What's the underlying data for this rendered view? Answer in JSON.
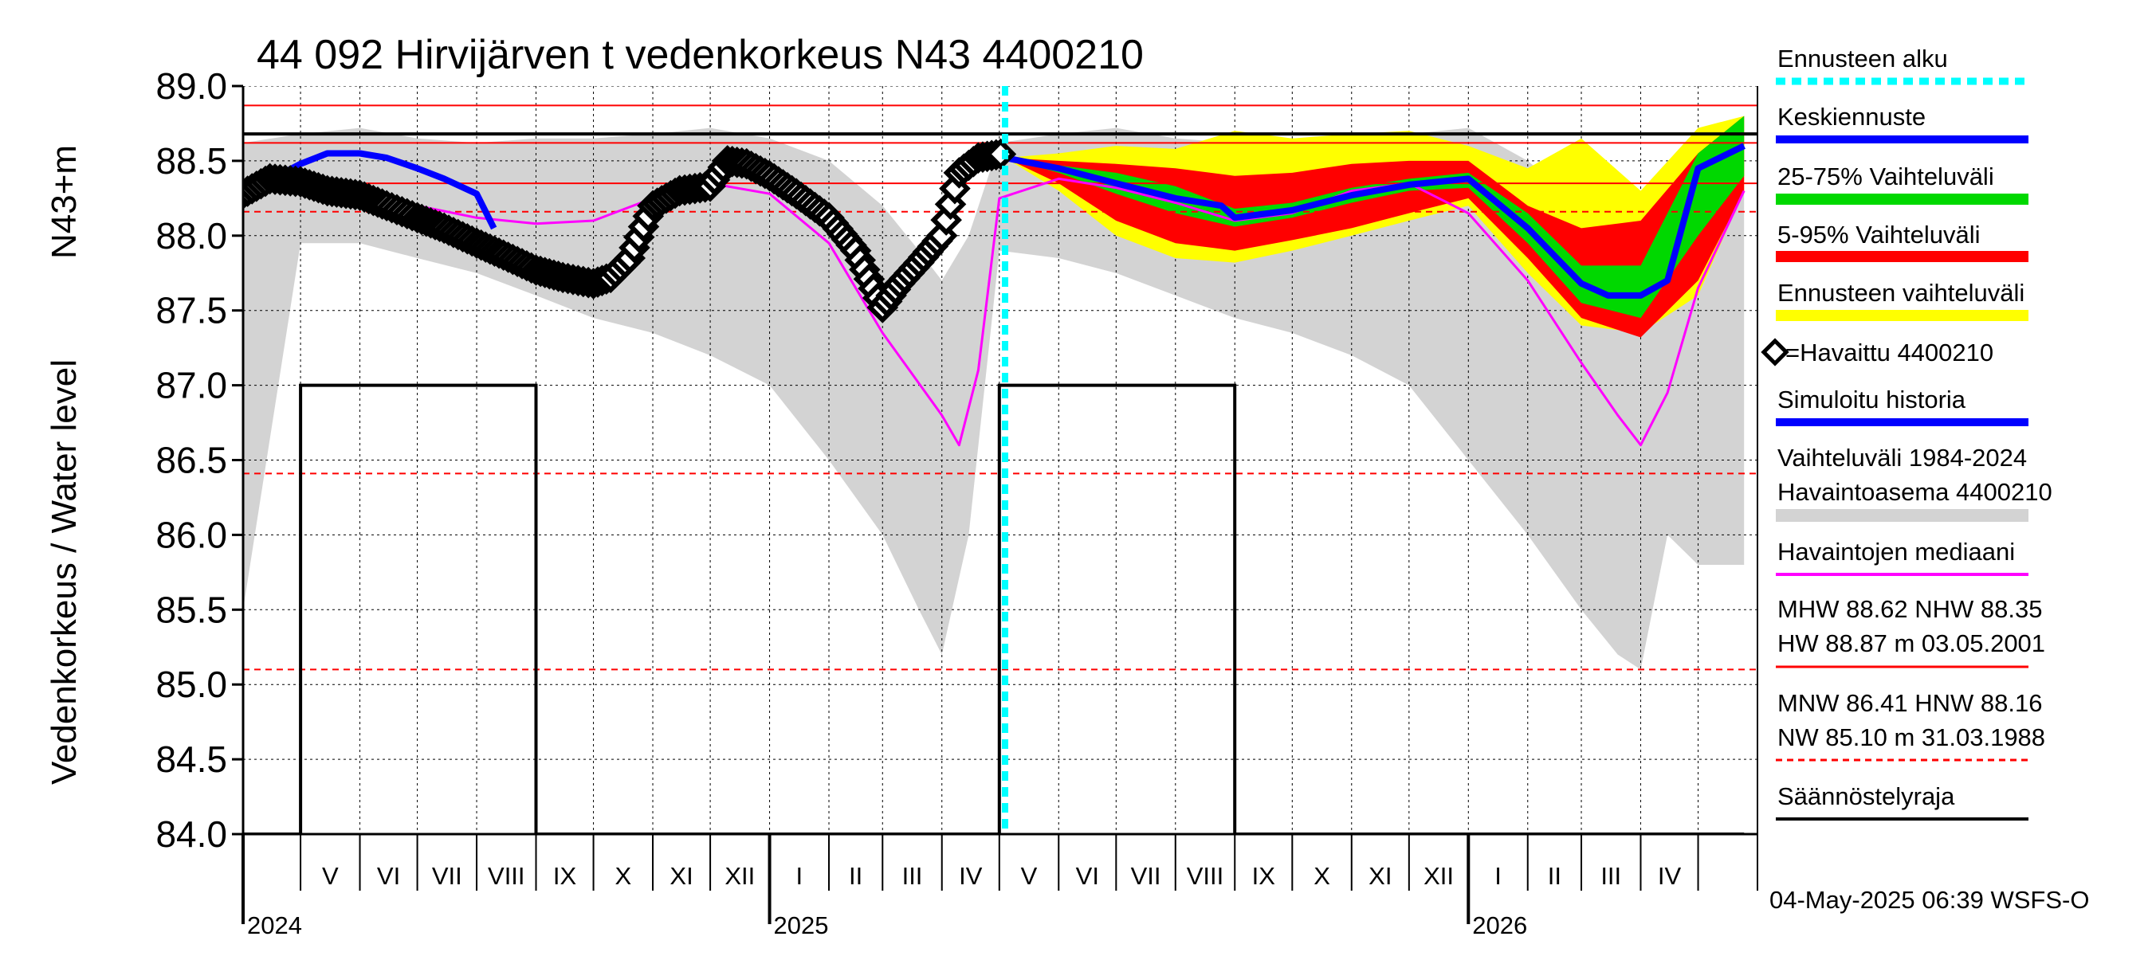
{
  "chart_data": {
    "type": "line",
    "title": "44 092 Hirvijärven t vedenkorkeus N43 4400210",
    "ylabel": "Vedenkorkeus / Water level",
    "ylabel2": "N43+m",
    "ylim": [
      84.0,
      89.0
    ],
    "yticks": [
      "89.0",
      "88.5",
      "88.0",
      "87.5",
      "87.0",
      "86.5",
      "86.0",
      "85.5",
      "85.0",
      "84.5",
      "84.0"
    ],
    "grid": true,
    "x_range": [
      "2024-04-01",
      "2026-06-01"
    ],
    "months": [
      "V",
      "VI",
      "VII",
      "VIII",
      "IX",
      "X",
      "XI",
      "XII",
      "I",
      "II",
      "III",
      "IV",
      "V",
      "VI",
      "VII",
      "VIII",
      "IX",
      "X",
      "XI",
      "XII",
      "I",
      "II",
      "III",
      "IV"
    ],
    "years": [
      "2024",
      "2025",
      "2026"
    ],
    "forecast_start": "2025-05-04",
    "reference_levels": {
      "HW": 88.87,
      "MHW": 88.62,
      "NHW": 88.35,
      "HNW": 88.16,
      "MNW": 86.41,
      "NW": 85.1,
      "regulation_upper": 88.68,
      "regulation_lower": 84.0
    },
    "series": [
      {
        "name": "=Havaittu 4400210",
        "color": "#000000",
        "x": [
          "2024-04-01",
          "2024-04-15",
          "2024-05-01",
          "2024-05-15",
          "2024-06-01",
          "2024-06-15",
          "2024-07-01",
          "2024-07-15",
          "2024-08-01",
          "2024-08-15",
          "2024-09-01",
          "2024-09-15",
          "2024-10-01",
          "2024-10-10",
          "2024-10-20",
          "2024-11-01",
          "2024-11-15",
          "2024-12-01",
          "2024-12-10",
          "2024-12-20",
          "2025-01-01",
          "2025-01-15",
          "2025-02-01",
          "2025-02-15",
          "2025-03-01",
          "2025-03-10",
          "2025-03-20",
          "2025-04-01",
          "2025-04-10",
          "2025-04-20",
          "2025-05-04"
        ],
        "y": [
          88.28,
          88.38,
          88.36,
          88.3,
          88.27,
          88.2,
          88.12,
          88.05,
          87.95,
          87.87,
          87.77,
          87.72,
          87.68,
          87.72,
          87.85,
          88.2,
          88.3,
          88.33,
          88.5,
          88.48,
          88.4,
          88.28,
          88.12,
          87.9,
          87.52,
          87.68,
          87.82,
          88.0,
          88.42,
          88.52,
          88.55
        ]
      },
      {
        "name": "Simuloitu historia",
        "color": "#0000ff",
        "x": [
          "2024-04-01",
          "2024-05-01",
          "2024-05-15",
          "2024-06-01",
          "2024-06-15",
          "2024-07-01",
          "2024-07-15",
          "2024-08-01",
          "2024-08-10"
        ],
        "y": [
          88.28,
          88.48,
          88.55,
          88.55,
          88.52,
          88.45,
          88.38,
          88.28,
          88.05
        ]
      },
      {
        "name": "Havaintojen mediaani",
        "color": "#ff00ff",
        "x": [
          "2024-04-01",
          "2024-05-01",
          "2024-06-01",
          "2024-07-01",
          "2024-08-01",
          "2024-09-01",
          "2024-10-01",
          "2024-11-01",
          "2024-12-01",
          "2025-01-01",
          "2025-02-01",
          "2025-03-01",
          "2025-04-01",
          "2025-04-10",
          "2025-04-20",
          "2025-05-01",
          "2025-06-01",
          "2025-07-01",
          "2025-08-01",
          "2025-09-01",
          "2025-10-01",
          "2025-11-01",
          "2025-12-01",
          "2026-01-01",
          "2026-02-01",
          "2026-03-01",
          "2026-03-20",
          "2026-04-01",
          "2026-04-15",
          "2026-05-01",
          "2026-05-25"
        ],
        "y": [
          88.28,
          88.38,
          88.3,
          88.2,
          88.12,
          88.08,
          88.1,
          88.25,
          88.35,
          88.28,
          87.95,
          87.35,
          86.8,
          86.6,
          87.1,
          88.25,
          88.38,
          88.32,
          88.22,
          88.1,
          88.15,
          88.3,
          88.35,
          88.15,
          87.7,
          87.15,
          86.8,
          86.6,
          86.95,
          87.65,
          88.3
        ]
      },
      {
        "name": "Keskiennuste",
        "color": "#0000ff",
        "x": [
          "2025-05-04",
          "2025-06-01",
          "2025-07-01",
          "2025-08-01",
          "2025-08-25",
          "2025-09-01",
          "2025-10-01",
          "2025-11-01",
          "2025-12-01",
          "2026-01-01",
          "2026-02-01",
          "2026-03-01",
          "2026-03-15",
          "2026-04-01",
          "2026-04-15",
          "2026-05-01",
          "2026-05-25"
        ],
        "y": [
          88.52,
          88.45,
          88.35,
          88.25,
          88.2,
          88.12,
          88.17,
          88.27,
          88.34,
          88.38,
          88.05,
          87.68,
          87.6,
          87.6,
          87.7,
          88.45,
          88.6
        ]
      }
    ],
    "bands": [
      {
        "name": "Vaihteluväli 1984-2024 Havaintoasema 4400210",
        "color": "#d3d3d3",
        "x": [
          "2024-04-01",
          "2024-05-01",
          "2024-06-01",
          "2024-07-01",
          "2024-08-01",
          "2024-09-01",
          "2024-10-01",
          "2024-11-01",
          "2024-12-01",
          "2025-01-01",
          "2025-02-01",
          "2025-03-01",
          "2025-03-20",
          "2025-04-01",
          "2025-04-15",
          "2025-05-01",
          "2025-06-01",
          "2025-07-01",
          "2025-08-01",
          "2025-09-01",
          "2025-10-01",
          "2025-11-01",
          "2025-12-01",
          "2026-01-01",
          "2026-02-01",
          "2026-03-01",
          "2026-03-20",
          "2026-04-01",
          "2026-04-15",
          "2026-05-01",
          "2026-05-25"
        ],
        "upper": [
          88.62,
          88.68,
          88.72,
          88.65,
          88.62,
          88.65,
          88.65,
          88.68,
          88.72,
          88.65,
          88.5,
          88.2,
          87.9,
          87.7,
          88.0,
          88.62,
          88.68,
          88.72,
          88.65,
          88.62,
          88.65,
          88.65,
          88.68,
          88.72,
          88.5,
          88.2,
          87.9,
          87.7,
          88.0,
          88.62,
          88.68
        ],
        "lower": [
          85.5,
          87.95,
          87.95,
          87.85,
          87.75,
          87.6,
          87.45,
          87.35,
          87.2,
          87.0,
          86.5,
          86.0,
          85.5,
          85.2,
          86.0,
          87.9,
          87.85,
          87.75,
          87.6,
          87.45,
          87.35,
          87.2,
          87.0,
          86.5,
          86.0,
          85.5,
          85.2,
          85.1,
          86.0,
          85.8,
          85.8
        ]
      },
      {
        "name": "Ennusteen vaihteluväli",
        "color": "#ffff00",
        "x": [
          "2025-05-04",
          "2025-06-01",
          "2025-07-01",
          "2025-08-01",
          "2025-09-01",
          "2025-10-01",
          "2025-11-01",
          "2025-12-01",
          "2026-01-01",
          "2026-02-01",
          "2026-03-01",
          "2026-04-01",
          "2026-05-01",
          "2026-05-25"
        ],
        "upper": [
          88.52,
          88.55,
          88.6,
          88.58,
          88.7,
          88.65,
          88.68,
          88.7,
          88.6,
          88.45,
          88.65,
          88.3,
          88.72,
          88.8
        ],
        "lower": [
          88.52,
          88.3,
          88.0,
          87.85,
          87.82,
          87.9,
          88.0,
          88.1,
          88.2,
          87.75,
          87.4,
          87.35,
          87.6,
          88.3
        ]
      },
      {
        "name": "5-95% Vaihteluväli",
        "color": "#ff0000",
        "x": [
          "2025-05-04",
          "2025-06-01",
          "2025-07-01",
          "2025-08-01",
          "2025-09-01",
          "2025-10-01",
          "2025-11-01",
          "2025-12-01",
          "2026-01-01",
          "2026-02-01",
          "2026-03-01",
          "2026-04-01",
          "2026-05-01",
          "2026-05-25"
        ],
        "upper": [
          88.52,
          88.5,
          88.48,
          88.45,
          88.4,
          88.42,
          88.48,
          88.5,
          88.5,
          88.2,
          88.05,
          88.1,
          88.55,
          88.8
        ],
        "lower": [
          88.52,
          88.35,
          88.1,
          87.95,
          87.9,
          87.97,
          88.05,
          88.15,
          88.25,
          87.85,
          87.45,
          87.32,
          87.7,
          88.3
        ]
      },
      {
        "name": "25-75% Vaihteluväli",
        "color": "#00d800",
        "x": [
          "2025-05-04",
          "2025-06-01",
          "2025-07-01",
          "2025-08-01",
          "2025-09-01",
          "2025-10-01",
          "2025-11-01",
          "2025-12-01",
          "2026-01-01",
          "2026-02-01",
          "2026-03-01",
          "2026-04-01",
          "2026-05-01",
          "2026-05-25"
        ],
        "upper": [
          88.52,
          88.47,
          88.42,
          88.33,
          88.18,
          88.22,
          88.32,
          88.38,
          88.42,
          88.15,
          87.8,
          87.8,
          88.55,
          88.8
        ],
        "lower": [
          88.52,
          88.42,
          88.28,
          88.15,
          88.06,
          88.12,
          88.22,
          88.3,
          88.32,
          87.95,
          87.55,
          87.45,
          88.0,
          88.4
        ]
      }
    ],
    "regulation_steps": [
      {
        "x": "2024-04-01",
        "y": 84.0
      },
      {
        "x": "2024-05-01",
        "y": 84.0
      },
      {
        "x": "2024-05-01",
        "y": 87.0
      },
      {
        "x": "2024-09-01",
        "y": 87.0
      },
      {
        "x": "2024-09-01",
        "y": 84.0
      },
      {
        "x": "2025-05-01",
        "y": 84.0
      },
      {
        "x": "2025-05-01",
        "y": 87.0
      },
      {
        "x": "2025-09-01",
        "y": 87.0
      },
      {
        "x": "2025-09-01",
        "y": 84.0
      },
      {
        "x": "2026-05-25",
        "y": 84.0
      }
    ]
  },
  "legend": {
    "forecast_start": "Ennusteen alku",
    "mean_forecast": "Keskiennuste",
    "range_25_75": "25-75% Vaihteluväli",
    "range_5_95": "5-95% Vaihteluväli",
    "forecast_range": "Ennusteen vaihteluväli",
    "observed": "=Havaittu 4400210",
    "simulated": "Simuloitu historia",
    "hist_range_1": "Vaihteluväli 1984-2024",
    "hist_range_2": " Havaintoasema 4400210",
    "median": "Havaintojen mediaani",
    "stats_high_1": "MHW  88.62 NHW  88.35",
    "stats_high_2": "HW  88.87 m 03.05.2001",
    "stats_low_1": "MNW  86.41 HNW  88.16",
    "stats_low_2": "NW  85.10 m 31.03.1988",
    "regulation": "Säännöstelyraja"
  },
  "footer": "04-May-2025 06:39 WSFS-O",
  "colors": {
    "forecast_line": "#00ffff",
    "mean": "#0000ff",
    "p25_75": "#00d800",
    "p5_95": "#ff0000",
    "fc_range": "#ffff00",
    "history_range": "#d3d3d3",
    "median": "#ff00ff",
    "ref_lines": "#ff0000",
    "regulation": "#000000"
  }
}
